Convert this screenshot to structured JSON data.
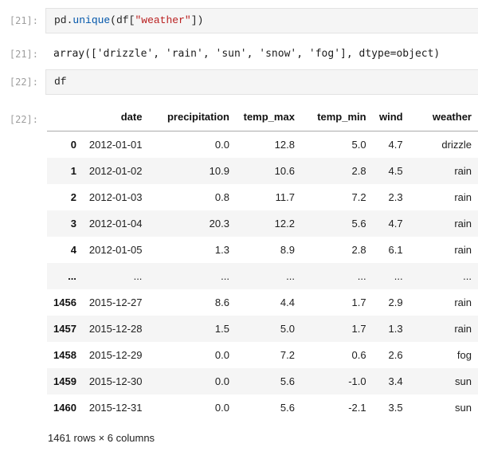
{
  "colors": {
    "prompt": "#9e9e9e",
    "cell_background": "#f5f5f5",
    "cell_border": "#e3e3e3",
    "code_text": "#212121",
    "string_token": "#ba2121",
    "property_token": "#0055aa",
    "header_underline": "#ababab",
    "row_stripe": "#f5f5f5"
  },
  "cells": {
    "input21": {
      "prompt": "[21]:",
      "tokens": [
        {
          "text": "pd",
          "style": "name"
        },
        {
          "text": ".",
          "style": "punct"
        },
        {
          "text": "unique",
          "style": "prop"
        },
        {
          "text": "(",
          "style": "punct"
        },
        {
          "text": "df",
          "style": "name"
        },
        {
          "text": "[",
          "style": "punct"
        },
        {
          "text": "\"weather\"",
          "style": "str"
        },
        {
          "text": "])",
          "style": "punct"
        }
      ]
    },
    "output21": {
      "prompt": "[21]:",
      "text": "array(['drizzle', 'rain', 'sun', 'snow', 'fog'], dtype=object)"
    },
    "input22": {
      "prompt": "[22]:",
      "tokens": [
        {
          "text": "df",
          "style": "name"
        }
      ]
    },
    "output22": {
      "prompt": "[22]:"
    }
  },
  "dataframe": {
    "columns": [
      "date",
      "precipitation",
      "temp_max",
      "temp_min",
      "wind",
      "weather"
    ],
    "rows": [
      {
        "index": "0",
        "cells": [
          "2012-01-01",
          "0.0",
          "12.8",
          "5.0",
          "4.7",
          "drizzle"
        ]
      },
      {
        "index": "1",
        "cells": [
          "2012-01-02",
          "10.9",
          "10.6",
          "2.8",
          "4.5",
          "rain"
        ]
      },
      {
        "index": "2",
        "cells": [
          "2012-01-03",
          "0.8",
          "11.7",
          "7.2",
          "2.3",
          "rain"
        ]
      },
      {
        "index": "3",
        "cells": [
          "2012-01-04",
          "20.3",
          "12.2",
          "5.6",
          "4.7",
          "rain"
        ]
      },
      {
        "index": "4",
        "cells": [
          "2012-01-05",
          "1.3",
          "8.9",
          "2.8",
          "6.1",
          "rain"
        ]
      },
      {
        "index": "...",
        "cells": [
          "...",
          "...",
          "...",
          "...",
          "...",
          "..."
        ]
      },
      {
        "index": "1456",
        "cells": [
          "2015-12-27",
          "8.6",
          "4.4",
          "1.7",
          "2.9",
          "rain"
        ]
      },
      {
        "index": "1457",
        "cells": [
          "2015-12-28",
          "1.5",
          "5.0",
          "1.7",
          "1.3",
          "rain"
        ]
      },
      {
        "index": "1458",
        "cells": [
          "2015-12-29",
          "0.0",
          "7.2",
          "0.6",
          "2.6",
          "fog"
        ]
      },
      {
        "index": "1459",
        "cells": [
          "2015-12-30",
          "0.0",
          "5.6",
          "-1.0",
          "3.4",
          "sun"
        ]
      },
      {
        "index": "1460",
        "cells": [
          "2015-12-31",
          "0.0",
          "5.6",
          "-2.1",
          "3.5",
          "sun"
        ]
      }
    ],
    "footer": "1461 rows × 6 columns"
  }
}
